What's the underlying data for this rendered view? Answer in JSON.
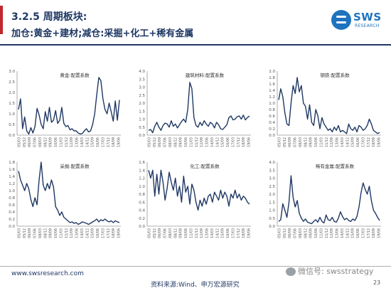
{
  "header": {
    "section": "3.2.5 周期板块:",
    "subtitle": "加仓:黄金+建材;减仓:采掘+化工+稀有金属"
  },
  "logo": {
    "text": "SWS",
    "subtext": "RESEARCH",
    "color": "#1e73be"
  },
  "footer": {
    "url": "www.swsresearch.com",
    "source": "资料来源:Wind、申万宏源研究",
    "page": "23",
    "wechat": "微信号: swsstrategy"
  },
  "colors": {
    "line": "#1f3864",
    "accent": "#c0272d",
    "axis": "#999999"
  },
  "chart_data": [
    {
      "type": "line",
      "title": "黄金:配置系数",
      "ylim": [
        0,
        3.0
      ],
      "yticks": [
        "0.0",
        "0.5",
        "1.0",
        "1.5",
        "2.0",
        "2.5",
        "3.0"
      ],
      "xticks": [
        "05/03",
        "05/12",
        "06/09",
        "07/06",
        "08/03",
        "08/12",
        "09/09",
        "10/06",
        "11/03",
        "11/12",
        "12/09",
        "13/06",
        "14/03",
        "14/12",
        "15/09",
        "16/06",
        "17/03",
        "17/12",
        "18/09",
        "19/06"
      ],
      "values": [
        1.2,
        1.7,
        0.3,
        0.85,
        0.2,
        0.05,
        0.35,
        0.1,
        0.4,
        1.25,
        0.95,
        0.5,
        0.3,
        1.1,
        0.65,
        1.3,
        0.6,
        0.7,
        1.15,
        0.55,
        0.7,
        1.3,
        0.55,
        0.4,
        0.45,
        0.25,
        0.3,
        0.2,
        0.2,
        0.1,
        0.05,
        0.08,
        0.2,
        0.3,
        0.15,
        0.2,
        0.5,
        1.0,
        1.9,
        2.7,
        2.55,
        1.7,
        1.2,
        1.0,
        1.5,
        1.1,
        0.65,
        1.6,
        0.7,
        1.65
      ]
    },
    {
      "type": "line",
      "title": "建筑材料:配置系数",
      "ylim": [
        0,
        4.0
      ],
      "yticks": [
        "0.0",
        "0.5",
        "1.0",
        "1.5",
        "2.0",
        "2.5",
        "3.0",
        "3.5",
        "4.0"
      ],
      "xticks": [
        "05/03",
        "05/12",
        "06/09",
        "07/06",
        "08/03",
        "08/12",
        "09/09",
        "10/06",
        "11/03",
        "11/12",
        "12/09",
        "13/06",
        "14/03",
        "14/12",
        "15/09",
        "16/06",
        "17/03",
        "17/12",
        "18/09",
        "19/06"
      ],
      "values": [
        0.3,
        0.35,
        0.15,
        0.55,
        0.8,
        0.5,
        0.3,
        0.6,
        0.75,
        0.7,
        0.5,
        0.9,
        0.55,
        0.7,
        0.45,
        0.65,
        0.85,
        1.0,
        0.8,
        1.6,
        3.3,
        2.9,
        1.1,
        0.6,
        0.5,
        0.8,
        0.6,
        0.9,
        0.7,
        0.55,
        0.8,
        0.7,
        0.45,
        0.8,
        0.65,
        0.4,
        0.35,
        0.5,
        0.65,
        1.1,
        1.2,
        0.95,
        1.0,
        1.15,
        1.2,
        1.0,
        1.25,
        0.95,
        1.1,
        1.2
      ]
    },
    {
      "type": "line",
      "title": "钢铁:配置系数",
      "ylim": [
        0,
        2.0
      ],
      "yticks": [
        "0.0",
        "0.2",
        "0.4",
        "0.6",
        "0.8",
        "1.0",
        "1.2",
        "1.4",
        "1.6",
        "1.8",
        "2.0"
      ],
      "xticks": [
        "05/03",
        "05/12",
        "06/09",
        "07/06",
        "08/03",
        "08/12",
        "09/09",
        "10/06",
        "11/03",
        "11/12",
        "12/09",
        "13/06",
        "14/03",
        "14/12",
        "15/09",
        "16/06",
        "17/03",
        "17/12",
        "18/09",
        "19/06"
      ],
      "values": [
        1.1,
        1.45,
        1.2,
        0.7,
        0.35,
        0.3,
        1.0,
        1.55,
        1.3,
        1.8,
        1.35,
        1.55,
        1.0,
        0.9,
        0.5,
        0.95,
        0.4,
        0.3,
        0.8,
        0.6,
        0.2,
        0.55,
        0.35,
        0.25,
        0.15,
        0.2,
        0.1,
        0.25,
        0.15,
        0.3,
        0.1,
        0.15,
        0.1,
        0.05,
        0.35,
        0.2,
        0.15,
        0.25,
        0.1,
        0.3,
        0.25,
        0.15,
        0.2,
        0.3,
        0.5,
        0.35,
        0.15,
        0.1,
        0.05,
        0.08
      ]
    },
    {
      "type": "line",
      "title": "采掘:配置系数",
      "ylim": [
        0,
        1.8
      ],
      "yticks": [
        "0.0",
        "0.2",
        "0.4",
        "0.6",
        "0.8",
        "1.0",
        "1.2",
        "1.4",
        "1.6",
        "1.8"
      ],
      "xticks": [
        "05/03",
        "05/12",
        "06/09",
        "07/06",
        "08/03",
        "08/12",
        "09/09",
        "10/06",
        "11/03",
        "11/12",
        "12/09",
        "13/06",
        "14/03",
        "14/12",
        "15/09",
        "16/06",
        "17/03",
        "17/12",
        "18/09",
        "19/06"
      ],
      "values": [
        1.55,
        1.3,
        1.15,
        1.0,
        1.2,
        1.05,
        0.75,
        0.55,
        0.8,
        0.6,
        1.3,
        1.8,
        1.15,
        1.0,
        1.2,
        1.05,
        1.3,
        1.1,
        0.55,
        0.45,
        0.3,
        0.4,
        0.25,
        0.2,
        0.15,
        0.1,
        0.12,
        0.08,
        0.1,
        0.05,
        0.08,
        0.12,
        0.1,
        0.08,
        0.05,
        0.08,
        0.12,
        0.15,
        0.2,
        0.12,
        0.18,
        0.15,
        0.2,
        0.15,
        0.12,
        0.15,
        0.1,
        0.15,
        0.12,
        0.1
      ]
    },
    {
      "type": "line",
      "title": "化工:配置系数",
      "ylim": [
        0,
        1.6
      ],
      "yticks": [
        "0.0",
        "0.2",
        "0.4",
        "0.6",
        "0.8",
        "1.0",
        "1.2",
        "1.4",
        "1.6"
      ],
      "xticks": [
        "05/03",
        "05/12",
        "06/09",
        "07/06",
        "08/03",
        "08/12",
        "09/09",
        "10/06",
        "11/03",
        "11/12",
        "12/09",
        "13/06",
        "14/03",
        "14/12",
        "15/09",
        "16/06",
        "17/03",
        "17/12",
        "18/09",
        "19/06"
      ],
      "values": [
        1.4,
        1.2,
        1.4,
        0.75,
        1.3,
        0.8,
        1.4,
        1.1,
        0.65,
        0.95,
        1.35,
        1.1,
        0.9,
        1.2,
        0.75,
        1.0,
        0.6,
        1.25,
        0.85,
        1.0,
        0.55,
        1.05,
        0.9,
        0.6,
        0.4,
        0.65,
        0.5,
        0.7,
        0.55,
        0.75,
        0.8,
        0.6,
        0.85,
        0.75,
        0.65,
        0.9,
        0.7,
        0.85,
        0.75,
        0.5,
        0.8,
        0.7,
        0.9,
        0.7,
        0.8,
        0.65,
        0.75,
        0.7,
        0.6,
        0.55
      ]
    },
    {
      "type": "line",
      "title": "稀有金属:配置系数",
      "ylim": [
        0,
        4.0
      ],
      "yticks": [
        "0.0",
        "0.5",
        "1.0",
        "1.5",
        "2.0",
        "2.5",
        "3.0",
        "3.5",
        "4.0"
      ],
      "xticks": [
        "05/03",
        "05/12",
        "06/09",
        "07/06",
        "08/03",
        "08/12",
        "09/09",
        "10/06",
        "11/03",
        "11/12",
        "12/09",
        "13/06",
        "14/03",
        "14/12",
        "15/09",
        "16/06",
        "17/03",
        "17/12",
        "18/09",
        "19/06"
      ],
      "values": [
        0.3,
        0.4,
        1.4,
        1.0,
        0.55,
        1.5,
        3.15,
        1.8,
        1.2,
        1.6,
        0.8,
        0.5,
        0.3,
        0.45,
        0.25,
        0.2,
        0.15,
        0.3,
        0.4,
        0.25,
        0.55,
        0.3,
        0.2,
        0.7,
        0.4,
        0.35,
        0.55,
        0.3,
        0.25,
        0.5,
        0.9,
        0.6,
        0.4,
        0.5,
        0.35,
        0.3,
        0.45,
        0.35,
        0.6,
        1.2,
        2.1,
        2.7,
        2.3,
        2.0,
        2.5,
        1.6,
        1.0,
        0.8,
        0.55,
        0.35
      ]
    }
  ]
}
